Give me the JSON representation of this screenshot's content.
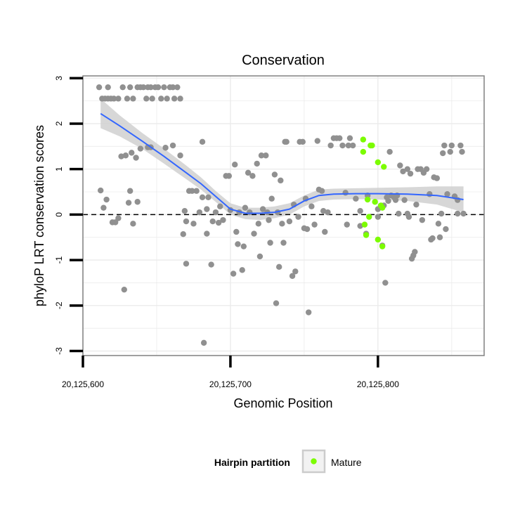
{
  "chart_data": {
    "type": "scatter",
    "title": "Conservation",
    "xlabel": "Genomic Position",
    "ylabel": "phyloP LRT conservation scores",
    "xlim": [
      20125600,
      20125872
    ],
    "ylim": [
      -3.1,
      3.05
    ],
    "xticks": [
      20125600,
      20125700,
      20125800
    ],
    "xtick_labels": [
      "20,125,600",
      "20,125,700",
      "20,125,800"
    ],
    "yticks": [
      -3,
      -2,
      -1,
      0,
      1,
      2,
      3
    ],
    "ytick_labels": [
      "-3",
      "-2",
      "-1",
      "0",
      "1",
      "2",
      "3"
    ],
    "grid": true,
    "reference_line": {
      "y": 0,
      "style": "dashed"
    },
    "colors": {
      "points": "#909090",
      "mature": "#7CFC00",
      "smooth": "#3366FF",
      "band": "#d0d0d0",
      "panel_border": "#808080",
      "grid": "#ebebeb"
    },
    "legend": {
      "title": "Hairpin partition",
      "placement": "bottom",
      "entries": [
        {
          "label": "Mature",
          "color": "#7CFC00"
        }
      ]
    },
    "series": [
      {
        "points": [
          [
            20125611,
            2.8
          ],
          [
            20125613,
            2.55
          ],
          [
            20125615,
            2.55
          ],
          [
            20125617,
            2.8
          ],
          [
            20125617,
            2.55
          ],
          [
            20125619,
            2.55
          ],
          [
            20125621,
            2.55
          ],
          [
            20125624,
            2.55
          ],
          [
            20125627,
            2.8
          ],
          [
            20125630,
            2.55
          ],
          [
            20125632,
            2.8
          ],
          [
            20125634,
            2.55
          ],
          [
            20125637,
            2.8
          ],
          [
            20125639,
            2.8
          ],
          [
            20125641,
            2.8
          ],
          [
            20125643,
            2.55
          ],
          [
            20125644,
            2.8
          ],
          [
            20125646,
            2.8
          ],
          [
            20125647,
            2.55
          ],
          [
            20125649,
            2.8
          ],
          [
            20125651,
            2.8
          ],
          [
            20125653,
            2.55
          ],
          [
            20125655,
            2.8
          ],
          [
            20125657,
            2.55
          ],
          [
            20125659,
            2.8
          ],
          [
            20125661,
            2.8
          ],
          [
            20125662,
            2.55
          ],
          [
            20125664,
            2.8
          ],
          [
            20125666,
            2.55
          ],
          [
            20125612,
            0.53
          ],
          [
            20125614,
            0.15
          ],
          [
            20125616,
            0.33
          ],
          [
            20125620,
            -0.17
          ],
          [
            20125622,
            -0.17
          ],
          [
            20125624,
            -0.08
          ],
          [
            20125626,
            1.28
          ],
          [
            20125628,
            -1.65
          ],
          [
            20125629,
            1.3
          ],
          [
            20125631,
            0.26
          ],
          [
            20125632,
            0.52
          ],
          [
            20125633,
            1.36
          ],
          [
            20125634,
            -0.2
          ],
          [
            20125636,
            1.25
          ],
          [
            20125637,
            0.28
          ],
          [
            20125639,
            1.45
          ],
          [
            20125644,
            1.48
          ],
          [
            20125646,
            1.48
          ],
          [
            20125656,
            1.47
          ],
          [
            20125661,
            1.52
          ],
          [
            20125666,
            1.3
          ],
          [
            20125668,
            -0.43
          ],
          [
            20125669,
            0.08
          ],
          [
            20125670,
            -1.08
          ],
          [
            20125670,
            -0.15
          ],
          [
            20125672,
            0.52
          ],
          [
            20125674,
            0.52
          ],
          [
            20125675,
            -0.2
          ],
          [
            20125677,
            0.52
          ],
          [
            20125679,
            0.05
          ],
          [
            20125681,
            1.6
          ],
          [
            20125681,
            0.38
          ],
          [
            20125682,
            -2.82
          ],
          [
            20125684,
            0.12
          ],
          [
            20125684,
            -0.42
          ],
          [
            20125685,
            0.38
          ],
          [
            20125687,
            -1.1
          ],
          [
            20125688,
            -0.15
          ],
          [
            20125690,
            0.05
          ],
          [
            20125692,
            -0.18
          ],
          [
            20125693,
            0.18
          ],
          [
            20125695,
            -0.12
          ],
          [
            20125697,
            0.85
          ],
          [
            20125699,
            0.85
          ],
          [
            20125700,
            0.1
          ],
          [
            20125702,
            -1.3
          ],
          [
            20125703,
            1.1
          ],
          [
            20125704,
            -0.38
          ],
          [
            20125705,
            -0.65
          ],
          [
            20125706,
            0.05
          ],
          [
            20125708,
            -1.22
          ],
          [
            20125709,
            -0.7
          ],
          [
            20125710,
            0.15
          ],
          [
            20125712,
            0.92
          ],
          [
            20125713,
            0.05
          ],
          [
            20125715,
            0.85
          ],
          [
            20125716,
            -0.42
          ],
          [
            20125718,
            1.12
          ],
          [
            20125719,
            -0.2
          ],
          [
            20125720,
            -0.92
          ],
          [
            20125721,
            1.3
          ],
          [
            20125722,
            0.12
          ],
          [
            20125724,
            1.3
          ],
          [
            20125725,
            0.05
          ],
          [
            20125726,
            -0.12
          ],
          [
            20125727,
            -0.62
          ],
          [
            20125728,
            0.35
          ],
          [
            20125730,
            0.88
          ],
          [
            20125731,
            -1.95
          ],
          [
            20125732,
            0.05
          ],
          [
            20125733,
            -1.15
          ],
          [
            20125734,
            0.75
          ],
          [
            20125735,
            -0.2
          ],
          [
            20125736,
            -0.62
          ],
          [
            20125737,
            1.6
          ],
          [
            20125738,
            1.6
          ],
          [
            20125740,
            -0.15
          ],
          [
            20125742,
            -1.35
          ],
          [
            20125743,
            0.22
          ],
          [
            20125744,
            -1.25
          ],
          [
            20125746,
            -0.05
          ],
          [
            20125747,
            1.6
          ],
          [
            20125749,
            1.6
          ],
          [
            20125750,
            -0.3
          ],
          [
            20125751,
            0.35
          ],
          [
            20125752,
            -0.32
          ],
          [
            20125753,
            -2.15
          ],
          [
            20125755,
            0.18
          ],
          [
            20125757,
            -0.22
          ],
          [
            20125759,
            1.62
          ],
          [
            20125760,
            0.55
          ],
          [
            20125762,
            0.52
          ],
          [
            20125763,
            0.08
          ],
          [
            20125764,
            -0.38
          ],
          [
            20125766,
            0.05
          ],
          [
            20125768,
            1.52
          ],
          [
            20125770,
            1.68
          ],
          [
            20125772,
            1.68
          ],
          [
            20125774,
            1.68
          ],
          [
            20125776,
            1.52
          ],
          [
            20125778,
            0.48
          ],
          [
            20125779,
            -0.22
          ],
          [
            20125780,
            1.52
          ],
          [
            20125781,
            1.68
          ],
          [
            20125783,
            1.52
          ],
          [
            20125785,
            0.35
          ],
          [
            20125788,
            0.08
          ],
          [
            20125788,
            -0.25
          ],
          [
            20125792,
            -0.42
          ],
          [
            20125793,
            0.42
          ],
          [
            20125800,
            0.12
          ],
          [
            20125800,
            -0.05
          ],
          [
            20125803,
            -0.68
          ],
          [
            20125804,
            0.2
          ],
          [
            20125805,
            -1.5
          ],
          [
            20125806,
            0.38
          ],
          [
            20125807,
            0.3
          ],
          [
            20125808,
            1.38
          ],
          [
            20125809,
            0.42
          ],
          [
            20125811,
            0.38
          ],
          [
            20125812,
            0.32
          ],
          [
            20125813,
            0.42
          ],
          [
            20125814,
            0.02
          ],
          [
            20125815,
            1.08
          ],
          [
            20125817,
            0.95
          ],
          [
            20125818,
            0.32
          ],
          [
            20125820,
            1.0
          ],
          [
            20125820,
            0.02
          ],
          [
            20125821,
            -0.05
          ],
          [
            20125822,
            0.9
          ],
          [
            20125823,
            -0.97
          ],
          [
            20125824,
            -0.9
          ],
          [
            20125825,
            -0.82
          ],
          [
            20125826,
            0.22
          ],
          [
            20125827,
            1.0
          ],
          [
            20125829,
            1.0
          ],
          [
            20125830,
            -0.12
          ],
          [
            20125831,
            0.92
          ],
          [
            20125833,
            1.0
          ],
          [
            20125835,
            0.45
          ],
          [
            20125836,
            -0.55
          ],
          [
            20125837,
            -0.52
          ],
          [
            20125838,
            0.82
          ],
          [
            20125840,
            0.8
          ],
          [
            20125841,
            -0.2
          ],
          [
            20125842,
            -0.5
          ],
          [
            20125843,
            0.02
          ],
          [
            20125844,
            1.35
          ],
          [
            20125845,
            1.52
          ],
          [
            20125846,
            -0.32
          ],
          [
            20125847,
            0.45
          ],
          [
            20125849,
            1.38
          ],
          [
            20125850,
            1.52
          ],
          [
            20125852,
            0.4
          ],
          [
            20125854,
            0.32
          ],
          [
            20125854,
            0.02
          ],
          [
            20125856,
            1.52
          ],
          [
            20125857,
            1.38
          ],
          [
            20125858,
            0.02
          ]
        ]
      },
      {
        "name": "Mature",
        "points": [
          [
            20125790,
            1.65
          ],
          [
            20125790,
            1.38
          ],
          [
            20125791,
            -0.22
          ],
          [
            20125792,
            -0.45
          ],
          [
            20125793,
            0.33
          ],
          [
            20125794,
            -0.05
          ],
          [
            20125795,
            1.52
          ],
          [
            20125796,
            1.52
          ],
          [
            20125798,
            0.28
          ],
          [
            20125800,
            1.15
          ],
          [
            20125800,
            -0.55
          ],
          [
            20125802,
            0.2
          ],
          [
            20125803,
            0.15
          ],
          [
            20125804,
            1.05
          ],
          [
            20125803,
            -0.7
          ]
        ]
      }
    ],
    "smooth": {
      "x": [
        20125612,
        20125625,
        20125640,
        20125655,
        20125670,
        20125680,
        20125690,
        20125700,
        20125710,
        20125720,
        20125730,
        20125740,
        20125750,
        20125760,
        20125770,
        20125785,
        20125800,
        20125820,
        20125840,
        20125858
      ],
      "y": [
        2.22,
        1.95,
        1.62,
        1.28,
        0.92,
        0.68,
        0.4,
        0.12,
        0.03,
        0.03,
        0.05,
        0.12,
        0.3,
        0.42,
        0.45,
        0.46,
        0.46,
        0.45,
        0.42,
        0.33
      ],
      "lower": [
        1.9,
        1.72,
        1.45,
        1.12,
        0.78,
        0.55,
        0.28,
        0.0,
        -0.1,
        -0.12,
        -0.08,
        0.0,
        0.18,
        0.3,
        0.33,
        0.34,
        0.33,
        0.3,
        0.22,
        0.05
      ],
      "upper": [
        2.55,
        2.18,
        1.8,
        1.45,
        1.08,
        0.82,
        0.52,
        0.25,
        0.15,
        0.15,
        0.18,
        0.25,
        0.42,
        0.55,
        0.57,
        0.58,
        0.59,
        0.6,
        0.62,
        0.62
      ]
    }
  }
}
